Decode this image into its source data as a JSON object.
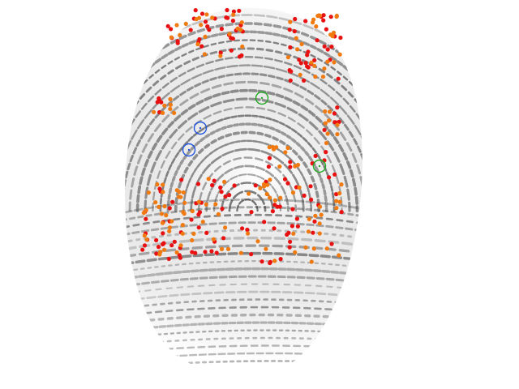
{
  "image": {
    "subject": "fingerprint-minutiae-overlay",
    "background_color": "#ffffff",
    "ridge_color": "#3a3a3a"
  },
  "marker_colors": {
    "red": "#e81010",
    "orange": "#f07a10",
    "green_ring": "#22aa22",
    "blue_ring": "#2255dd"
  },
  "marker_counts": {
    "red_dots": 170,
    "orange_dots": 150,
    "green_rings": 2,
    "blue_rings": 2
  }
}
